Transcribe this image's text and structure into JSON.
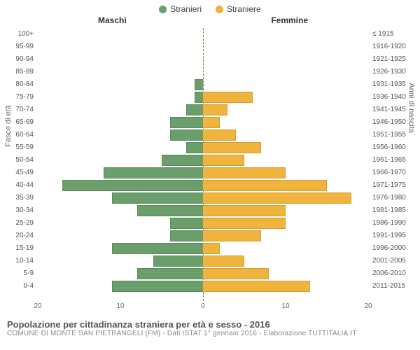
{
  "legend": {
    "left": "Stranieri",
    "right": "Straniere"
  },
  "colors": {
    "male": "#6a9e6a",
    "female": "#f0b43c",
    "divider": "#7a7a2a",
    "bg": "#ffffff"
  },
  "headers": {
    "left": "Maschi",
    "right": "Femmine"
  },
  "axis": {
    "y_left_title": "Fasce di età",
    "y_right_title": "Anni di nascita",
    "x_max": 20,
    "x_ticks_left": [
      20,
      10,
      0
    ],
    "x_ticks_right": [
      0,
      10,
      20
    ]
  },
  "chart": {
    "type": "population-pyramid",
    "rows": [
      {
        "age": "100+",
        "birth": "≤ 1915",
        "m": 0,
        "f": 0
      },
      {
        "age": "95-99",
        "birth": "1916-1920",
        "m": 0,
        "f": 0
      },
      {
        "age": "90-94",
        "birth": "1921-1925",
        "m": 0,
        "f": 0
      },
      {
        "age": "85-89",
        "birth": "1926-1930",
        "m": 0,
        "f": 0
      },
      {
        "age": "80-84",
        "birth": "1931-1935",
        "m": 1,
        "f": 0
      },
      {
        "age": "75-79",
        "birth": "1936-1940",
        "m": 1,
        "f": 6
      },
      {
        "age": "70-74",
        "birth": "1941-1945",
        "m": 2,
        "f": 3
      },
      {
        "age": "65-69",
        "birth": "1946-1950",
        "m": 4,
        "f": 2
      },
      {
        "age": "60-64",
        "birth": "1951-1955",
        "m": 4,
        "f": 4
      },
      {
        "age": "55-59",
        "birth": "1956-1960",
        "m": 2,
        "f": 7
      },
      {
        "age": "50-54",
        "birth": "1961-1965",
        "m": 5,
        "f": 5
      },
      {
        "age": "45-49",
        "birth": "1966-1970",
        "m": 12,
        "f": 10
      },
      {
        "age": "40-44",
        "birth": "1971-1975",
        "m": 17,
        "f": 15
      },
      {
        "age": "35-39",
        "birth": "1976-1980",
        "m": 11,
        "f": 18
      },
      {
        "age": "30-34",
        "birth": "1981-1985",
        "m": 8,
        "f": 10
      },
      {
        "age": "25-29",
        "birth": "1986-1990",
        "m": 4,
        "f": 10
      },
      {
        "age": "20-24",
        "birth": "1991-1995",
        "m": 4,
        "f": 7
      },
      {
        "age": "15-19",
        "birth": "1996-2000",
        "m": 11,
        "f": 2
      },
      {
        "age": "10-14",
        "birth": "2001-2005",
        "m": 6,
        "f": 5
      },
      {
        "age": "5-9",
        "birth": "2006-2010",
        "m": 8,
        "f": 8
      },
      {
        "age": "0-4",
        "birth": "2011-2015",
        "m": 11,
        "f": 13
      }
    ]
  },
  "footer": {
    "line1": "Popolazione per cittadinanza straniera per età e sesso - 2016",
    "line2": "COMUNE DI MONTE SAN PIETRANGELI (FM) - Dati ISTAT 1° gennaio 2016 - Elaborazione TUTTITALIA.IT"
  }
}
